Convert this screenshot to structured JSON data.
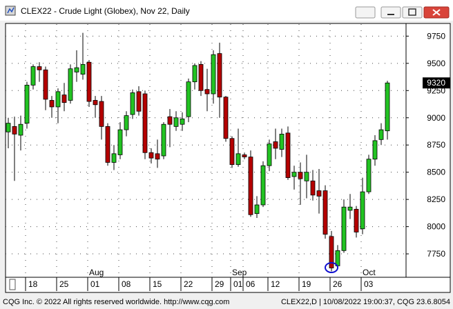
{
  "chart_data": {
    "type": "candlestick",
    "title": "CLEX22 - Crude Light (Globex), Nov 22, Daily",
    "categories": [
      null,
      null,
      null,
      "18",
      null,
      null,
      null,
      null,
      "25",
      null,
      null,
      null,
      null,
      "01",
      null,
      null,
      null,
      null,
      "08",
      null,
      null,
      null,
      null,
      "15",
      null,
      null,
      null,
      null,
      "22",
      null,
      null,
      null,
      null,
      "29",
      null,
      null,
      "01",
      null,
      "06",
      null,
      null,
      null,
      "12",
      null,
      null,
      null,
      null,
      "19",
      null,
      null,
      null,
      null,
      "26",
      null,
      null,
      null,
      null,
      "03",
      null,
      null,
      null,
      null
    ],
    "months": [
      "Aug",
      "Sep",
      "Oct"
    ],
    "open": [
      8870,
      8920,
      8840,
      8950,
      9300,
      9470,
      9440,
      9160,
      9100,
      9210,
      9160,
      9420,
      9400,
      9510,
      9160,
      9150,
      8920,
      8590,
      8660,
      8890,
      9030,
      9240,
      9220,
      8680,
      8670,
      8650,
      9010,
      8920,
      8940,
      9010,
      9330,
      9490,
      9260,
      9220,
      9590,
      9190,
      8810,
      8570,
      8660,
      8640,
      8120,
      8200,
      8560,
      8780,
      8710,
      8860,
      8460,
      8500,
      8420,
      8420,
      8330,
      8330,
      7910,
      7640,
      7780,
      8150,
      8160,
      7980,
      8320,
      8620,
      8800,
      8880
    ],
    "high": [
      9000,
      9010,
      9020,
      9330,
      9490,
      9510,
      9470,
      9200,
      9270,
      9320,
      9490,
      9620,
      9780,
      9530,
      9200,
      9200,
      8950,
      8750,
      8960,
      9060,
      9260,
      9290,
      9250,
      8720,
      8800,
      8960,
      9080,
      9060,
      9050,
      9360,
      9500,
      9520,
      9450,
      9620,
      9690,
      9200,
      8830,
      8900,
      8680,
      8700,
      8280,
      8600,
      8800,
      8900,
      8900,
      8920,
      8560,
      8590,
      8660,
      8520,
      8530,
      8380,
      7960,
      7830,
      8250,
      8300,
      8190,
      8450,
      8660,
      8840,
      8950,
      9340
    ],
    "low": [
      8720,
      8420,
      8700,
      8900,
      9260,
      9330,
      9070,
      9000,
      8950,
      9060,
      9130,
      9330,
      9350,
      9100,
      9000,
      8800,
      8560,
      8520,
      8620,
      8830,
      8990,
      9020,
      8620,
      8580,
      8540,
      8620,
      8730,
      8880,
      8880,
      8960,
      9260,
      9200,
      9060,
      9130,
      9000,
      8780,
      8540,
      8550,
      8620,
      8090,
      8080,
      8180,
      8510,
      8620,
      8640,
      8430,
      8340,
      8200,
      8260,
      8240,
      8120,
      7890,
      7590,
      7610,
      7760,
      8070,
      7900,
      7930,
      8300,
      8560,
      8750,
      8800
    ],
    "close": [
      8950,
      8850,
      8940,
      9300,
      9470,
      9440,
      9170,
      9100,
      9240,
      9140,
      9450,
      9460,
      9490,
      9150,
      9120,
      8920,
      8590,
      8670,
      8890,
      9020,
      9230,
      9060,
      8680,
      8630,
      8620,
      8940,
      8940,
      9000,
      8990,
      9330,
      9480,
      9250,
      9220,
      9580,
      9190,
      8810,
      8570,
      8670,
      8640,
      8110,
      8200,
      8560,
      8760,
      8720,
      8850,
      8450,
      8500,
      8440,
      8500,
      8290,
      8280,
      7930,
      7620,
      7780,
      8180,
      8180,
      7950,
      8320,
      8620,
      8790,
      8890,
      9320
    ],
    "up_color": "#22c322",
    "down_color": "#b40000",
    "ylim": [
      7535,
      9860
    ],
    "yticks": [
      7750,
      8000,
      8250,
      8500,
      8750,
      9000,
      9250,
      9500,
      9750
    ],
    "grid": true
  },
  "footer": {
    "left": "CQG Inc. © 2022 All rights reserved worldwide. http://www.cqg.com",
    "right": "CLEX22,D | 10/08/2022 19:00:37, CQG 23.6.8054"
  }
}
